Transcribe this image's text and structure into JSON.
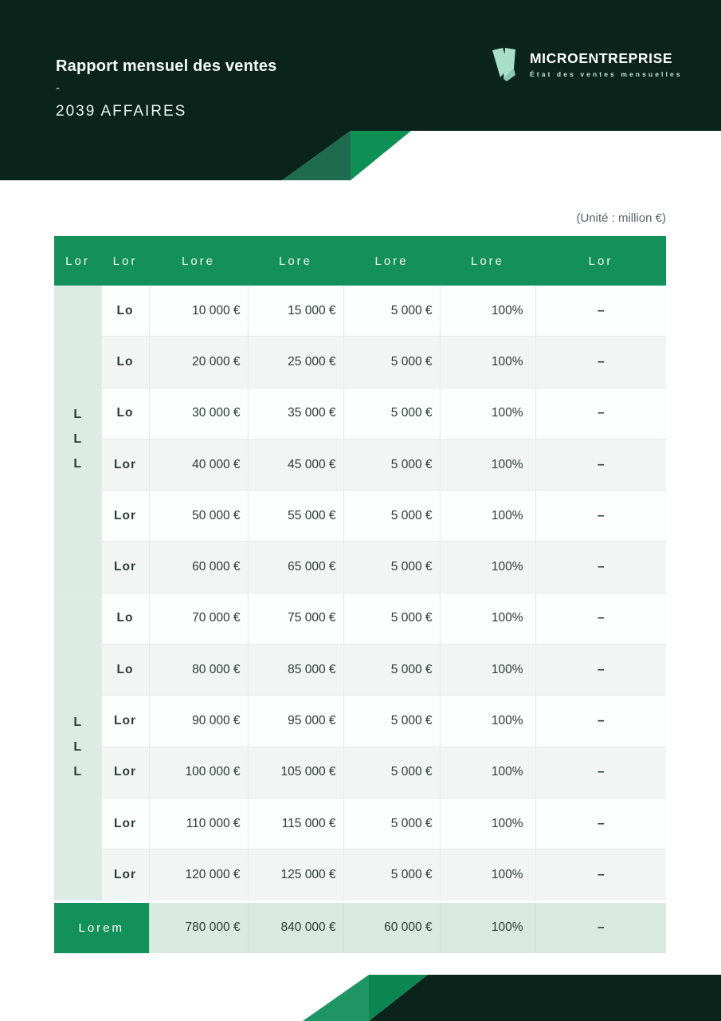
{
  "page": {
    "unit_note": "(Unité : million €)"
  },
  "header": {
    "title": "Rapport mensuel des ventes",
    "separator": "-",
    "subtitle": "2039 AFFAIRES"
  },
  "brand": {
    "name": "MICROENTREPRISE",
    "tagline": "État des ventes mensuelles",
    "logo_icon": "folded-ribbon-icon"
  },
  "colors": {
    "dark_green": "#0a241c",
    "brand_green": "#14915a",
    "bright_green": "#0f9054",
    "muted_green": "#1e6b4e",
    "mint_band": "#ddebe5",
    "mint_total": "#d8e9e0",
    "stripe_gray": "#f3f5f4",
    "text_dark": "#2b3b34",
    "logo_mint": "#a9decb"
  },
  "table": {
    "headers": [
      "Lor",
      "Lor",
      "Lore",
      "Lore",
      "Lore",
      "Lore",
      "Lor"
    ],
    "groups": [
      {
        "label_lines": [
          "L",
          "L",
          "L"
        ],
        "rows": [
          {
            "label": "Lo",
            "values": [
              "10 000 €",
              "15 000 €",
              "5 000 €",
              "100%",
              "–"
            ]
          },
          {
            "label": "Lo",
            "values": [
              "20 000 €",
              "25 000 €",
              "5 000 €",
              "100%",
              "–"
            ]
          },
          {
            "label": "Lo",
            "values": [
              "30 000 €",
              "35 000 €",
              "5 000 €",
              "100%",
              "–"
            ]
          },
          {
            "label": "Lor",
            "values": [
              "40 000 €",
              "45 000 €",
              "5 000 €",
              "100%",
              "–"
            ]
          },
          {
            "label": "Lor",
            "values": [
              "50 000 €",
              "55 000 €",
              "5 000 €",
              "100%",
              "–"
            ]
          },
          {
            "label": "Lor",
            "values": [
              "60 000 €",
              "65 000 €",
              "5 000 €",
              "100%",
              "–"
            ]
          }
        ]
      },
      {
        "label_lines": [
          "L",
          "L",
          "L"
        ],
        "rows": [
          {
            "label": "Lo",
            "values": [
              "70 000 €",
              "75 000 €",
              "5 000 €",
              "100%",
              "–"
            ]
          },
          {
            "label": "Lo",
            "values": [
              "80 000 €",
              "85 000 €",
              "5 000 €",
              "100%",
              "–"
            ]
          },
          {
            "label": "Lor",
            "values": [
              "90 000 €",
              "95 000 €",
              "5 000 €",
              "100%",
              "–"
            ]
          },
          {
            "label": "Lor",
            "values": [
              "100 000 €",
              "105 000 €",
              "5 000 €",
              "100%",
              "–"
            ]
          },
          {
            "label": "Lor",
            "values": [
              "110 000 €",
              "115 000 €",
              "5 000 €",
              "100%",
              "–"
            ]
          },
          {
            "label": "Lor",
            "values": [
              "120 000 €",
              "125 000 €",
              "5 000 €",
              "100%",
              "–"
            ]
          }
        ]
      }
    ],
    "total_row": {
      "label": "Lorem",
      "values": [
        "780 000 €",
        "840 000 €",
        "60 000 €",
        "100%",
        "–"
      ]
    }
  }
}
